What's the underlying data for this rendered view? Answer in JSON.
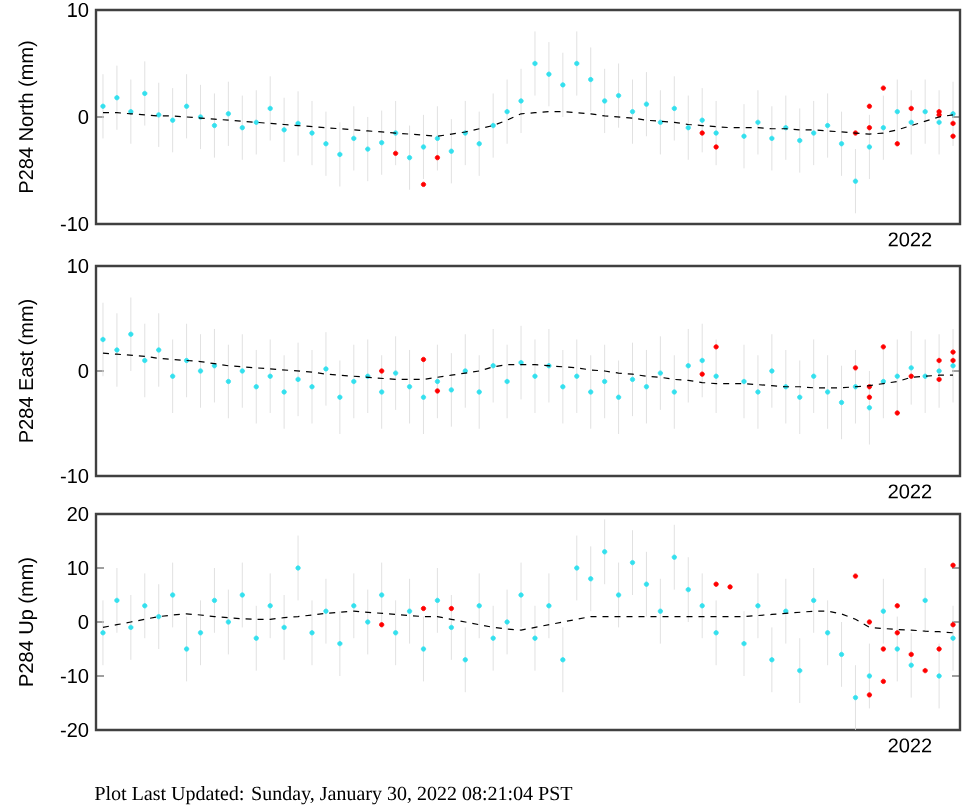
{
  "chart_data": [
    {
      "type": "scatter",
      "ylabel": "P284 North (mm)",
      "ylim": [
        -10,
        10
      ],
      "yticks": [
        -10,
        0,
        10
      ],
      "tick_labels": "y",
      "annotations": [
        "2022"
      ],
      "categories": [
        null,
        null,
        null,
        null,
        null,
        null,
        null,
        null,
        null,
        null,
        null,
        null,
        null,
        null,
        null,
        null,
        null,
        null,
        null,
        null,
        null,
        null,
        null,
        null,
        null,
        null,
        null,
        null,
        null,
        null,
        null,
        null,
        null,
        null,
        null,
        null,
        null,
        null,
        null,
        null,
        null,
        null,
        null,
        null,
        null,
        null,
        null,
        null,
        null,
        null,
        null,
        null,
        null,
        null,
        null,
        null,
        null,
        null,
        null,
        null,
        null,
        null
      ],
      "series": [
        {
          "color": "#33e0ee",
          "marker": "circle",
          "values": [
            1.0,
            1.8,
            0.5,
            2.2,
            0.2,
            -0.3,
            1.0,
            0.0,
            -0.8,
            0.3,
            -1.0,
            -0.5,
            0.8,
            -1.2,
            -0.6,
            -1.5,
            -2.5,
            -3.5,
            -2.0,
            -3.0,
            -2.4,
            -1.5,
            -3.8,
            -2.8,
            -2.0,
            -3.2,
            -1.5,
            -2.5,
            -0.8,
            0.5,
            1.5,
            5.0,
            4.0,
            3.0,
            5.0,
            3.5,
            1.5,
            2.0,
            0.5,
            1.2,
            -0.5,
            0.8,
            -1.0,
            -0.3,
            -1.5,
            null,
            -1.8,
            -0.5,
            -2.0,
            -1.0,
            -2.2,
            -1.5,
            -0.8,
            -2.5,
            -6.0,
            -2.8,
            -1.0,
            0.5,
            -0.5,
            0.5,
            -0.5,
            0.3
          ],
          "errors": [
            3,
            3,
            3,
            3,
            3,
            3,
            3,
            3,
            3,
            3,
            3,
            3,
            3,
            3,
            3,
            3,
            3,
            3,
            3,
            3,
            3,
            3,
            3,
            3,
            3,
            3,
            3,
            3,
            3,
            3,
            3,
            3,
            3,
            3,
            3,
            3,
            3,
            3,
            3,
            3,
            3,
            3,
            3,
            3,
            3,
            null,
            3,
            3,
            3,
            3,
            3,
            3,
            3,
            3,
            3,
            3,
            3,
            3,
            3,
            3,
            3,
            3
          ]
        },
        {
          "color": "#ff0000",
          "marker": "circle",
          "values": [
            null,
            null,
            null,
            null,
            null,
            null,
            null,
            null,
            null,
            null,
            null,
            null,
            null,
            null,
            null,
            null,
            null,
            null,
            null,
            null,
            null,
            -3.4,
            null,
            -6.3,
            -3.8,
            null,
            null,
            null,
            null,
            null,
            null,
            null,
            null,
            null,
            null,
            null,
            null,
            null,
            null,
            null,
            null,
            null,
            null,
            -1.5,
            -2.8,
            null,
            null,
            null,
            null,
            null,
            null,
            null,
            null,
            null,
            -1.5,
            1.0,
            2.7,
            -2.5,
            0.8,
            null,
            0.2,
            -1.8
          ]
        },
        {
          "color": "#ff0000",
          "marker": "circle",
          "values": [
            null,
            null,
            null,
            null,
            null,
            null,
            null,
            null,
            null,
            null,
            null,
            null,
            null,
            null,
            null,
            null,
            null,
            null,
            null,
            null,
            null,
            null,
            null,
            null,
            null,
            null,
            null,
            null,
            null,
            null,
            null,
            null,
            null,
            null,
            null,
            null,
            null,
            null,
            null,
            null,
            null,
            null,
            null,
            null,
            null,
            null,
            null,
            null,
            null,
            null,
            null,
            null,
            null,
            null,
            null,
            -1.0,
            null,
            null,
            null,
            null,
            0.5,
            -0.6
          ]
        },
        {
          "type": "line",
          "color": "#000000",
          "line_style": "dashed",
          "marker": "none",
          "values": [
            0.4,
            0.4,
            0.3,
            0.2,
            0.1,
            0.1,
            0.0,
            -0.1,
            -0.2,
            -0.3,
            -0.4,
            -0.5,
            -0.6,
            -0.7,
            -0.8,
            -0.9,
            -1.0,
            -1.1,
            -1.2,
            -1.3,
            -1.4,
            -1.5,
            -1.6,
            -1.7,
            -1.8,
            -1.6,
            -1.4,
            -1.1,
            -0.8,
            -0.3,
            0.3,
            0.4,
            0.5,
            0.5,
            0.4,
            0.3,
            0.1,
            0.0,
            -0.1,
            -0.3,
            -0.4,
            -0.5,
            -0.7,
            -0.8,
            -0.9,
            -1.0,
            -1.0,
            -1.0,
            -1.1,
            -1.1,
            -1.2,
            -1.2,
            -1.3,
            -1.4,
            -1.5,
            -1.6,
            -1.5,
            -1.2,
            -0.8,
            -0.4,
            0.0,
            0.2
          ]
        }
      ]
    },
    {
      "type": "scatter",
      "ylabel": "P284 East (mm)",
      "ylim": [
        -10,
        10
      ],
      "yticks": [
        -10,
        0,
        10
      ],
      "tick_labels": "y",
      "annotations": [
        "2022"
      ],
      "categories": [
        null,
        null,
        null,
        null,
        null,
        null,
        null,
        null,
        null,
        null,
        null,
        null,
        null,
        null,
        null,
        null,
        null,
        null,
        null,
        null,
        null,
        null,
        null,
        null,
        null,
        null,
        null,
        null,
        null,
        null,
        null,
        null,
        null,
        null,
        null,
        null,
        null,
        null,
        null,
        null,
        null,
        null,
        null,
        null,
        null,
        null,
        null,
        null,
        null,
        null,
        null,
        null,
        null,
        null,
        null,
        null,
        null,
        null,
        null,
        null,
        null,
        null
      ],
      "series": [
        {
          "color": "#33e0ee",
          "marker": "circle",
          "values": [
            3.0,
            2.0,
            3.5,
            1.0,
            2.0,
            -0.5,
            1.0,
            0.0,
            0.5,
            -1.0,
            0.0,
            -1.5,
            -0.5,
            -2.0,
            -0.8,
            -1.5,
            0.2,
            -2.5,
            -1.0,
            -0.5,
            -2.0,
            -0.2,
            -1.5,
            -2.5,
            -1.0,
            -1.8,
            0.0,
            -2.0,
            0.5,
            -1.0,
            0.8,
            -0.5,
            0.5,
            -1.5,
            -0.5,
            -2.0,
            -1.0,
            -2.5,
            -0.8,
            -1.5,
            -0.2,
            -2.0,
            0.5,
            1.0,
            -0.5,
            null,
            -1.0,
            -2.0,
            0.0,
            -1.5,
            -2.5,
            -0.5,
            -2.0,
            -3.0,
            -1.5,
            -3.5,
            -1.0,
            -0.5,
            0.3,
            -0.5,
            0.0,
            0.5
          ],
          "errors": [
            3.5,
            3.5,
            3.5,
            3.5,
            3.5,
            3.5,
            3.5,
            3.5,
            3.5,
            3.5,
            3.5,
            3.5,
            3.5,
            3.5,
            3.5,
            3.5,
            3.5,
            3.5,
            3.5,
            3.5,
            3.5,
            3.5,
            3.5,
            3.5,
            3.5,
            3.5,
            3.5,
            3.5,
            3.5,
            3.5,
            3.5,
            3.5,
            3.5,
            3.5,
            3.5,
            3.5,
            3.5,
            3.5,
            3.5,
            3.5,
            3.5,
            3.5,
            3.5,
            3.5,
            3.5,
            null,
            3.5,
            3.5,
            3.5,
            3.5,
            3.5,
            3.5,
            3.5,
            3.5,
            3.5,
            3.5,
            3.5,
            3.5,
            3.5,
            3.5,
            3.5,
            3.5
          ]
        },
        {
          "color": "#ff0000",
          "marker": "circle",
          "values": [
            null,
            null,
            null,
            null,
            null,
            null,
            null,
            null,
            null,
            null,
            null,
            null,
            null,
            null,
            null,
            null,
            null,
            null,
            null,
            null,
            0.0,
            null,
            null,
            1.1,
            -1.9,
            null,
            null,
            null,
            null,
            null,
            null,
            null,
            null,
            null,
            null,
            null,
            null,
            null,
            null,
            null,
            null,
            null,
            null,
            null,
            2.3,
            null,
            null,
            null,
            null,
            null,
            null,
            null,
            null,
            null,
            0.3,
            -2.5,
            2.3,
            -4.0,
            -0.5,
            null,
            -0.8,
            1.8
          ]
        },
        {
          "color": "#ff0000",
          "marker": "circle",
          "values": [
            null,
            null,
            null,
            null,
            null,
            null,
            null,
            null,
            null,
            null,
            null,
            null,
            null,
            null,
            null,
            null,
            null,
            null,
            null,
            null,
            null,
            null,
            null,
            null,
            null,
            null,
            null,
            null,
            null,
            null,
            null,
            null,
            null,
            null,
            null,
            null,
            null,
            null,
            null,
            null,
            null,
            null,
            null,
            -0.3,
            null,
            null,
            null,
            null,
            null,
            null,
            null,
            null,
            null,
            null,
            null,
            -1.5,
            null,
            null,
            null,
            null,
            1.0,
            1.0
          ]
        },
        {
          "type": "line",
          "color": "#000000",
          "line_style": "dashed",
          "marker": "none",
          "values": [
            1.7,
            1.6,
            1.5,
            1.4,
            1.2,
            1.1,
            1.0,
            0.9,
            0.7,
            0.5,
            0.4,
            0.3,
            0.2,
            0.1,
            0.0,
            -0.1,
            -0.3,
            -0.4,
            -0.5,
            -0.6,
            -0.7,
            -0.8,
            -0.8,
            -0.8,
            -0.6,
            -0.4,
            -0.2,
            0.0,
            0.4,
            0.6,
            0.6,
            0.6,
            0.5,
            0.4,
            0.3,
            0.1,
            0.0,
            -0.2,
            -0.3,
            -0.5,
            -0.6,
            -0.8,
            -0.9,
            -1.1,
            -1.2,
            -1.2,
            -1.2,
            -1.3,
            -1.4,
            -1.5,
            -1.5,
            -1.6,
            -1.6,
            -1.6,
            -1.5,
            -1.4,
            -1.2,
            -1.0,
            -0.6,
            -0.5,
            -0.4,
            -0.4
          ]
        }
      ]
    },
    {
      "type": "scatter",
      "ylabel": "P284 Up (mm)",
      "ylim": [
        -20,
        20
      ],
      "yticks": [
        -20,
        -10,
        0,
        10,
        20
      ],
      "tick_labels": "y",
      "annotations": [
        "2022",
        "Plot Last Updated:   Sunday, January 30, 2022 08:21:04 PST"
      ],
      "categories": [
        null,
        null,
        null,
        null,
        null,
        null,
        null,
        null,
        null,
        null,
        null,
        null,
        null,
        null,
        null,
        null,
        null,
        null,
        null,
        null,
        null,
        null,
        null,
        null,
        null,
        null,
        null,
        null,
        null,
        null,
        null,
        null,
        null,
        null,
        null,
        null,
        null,
        null,
        null,
        null,
        null,
        null,
        null,
        null,
        null,
        null,
        null,
        null,
        null,
        null,
        null,
        null,
        null,
        null,
        null,
        null,
        null,
        null,
        null,
        null,
        null,
        null
      ],
      "series": [
        {
          "color": "#33e0ee",
          "marker": "circle",
          "values": [
            -2,
            4,
            -1,
            3,
            1,
            5,
            -5,
            -2,
            4,
            0,
            5,
            -3,
            3,
            -1,
            10,
            -2,
            2,
            -4,
            3,
            0,
            5,
            -2,
            2,
            -5,
            4,
            -1,
            -7,
            3,
            -3,
            0,
            5,
            -3,
            3,
            -7,
            10,
            8,
            13,
            5,
            11,
            7,
            2,
            12,
            6,
            3,
            -2,
            null,
            -4,
            3,
            -7,
            2,
            -9,
            4,
            -2,
            -6,
            -14,
            -10,
            2,
            -5,
            -8,
            4,
            -10,
            -3
          ],
          "errors": [
            6,
            6,
            6,
            6,
            6,
            6,
            6,
            6,
            6,
            6,
            6,
            6,
            6,
            6,
            6,
            6,
            6,
            6,
            6,
            6,
            6,
            6,
            6,
            6,
            6,
            6,
            6,
            6,
            6,
            6,
            6,
            6,
            6,
            6,
            6,
            6,
            6,
            6,
            6,
            6,
            6,
            6,
            6,
            6,
            6,
            null,
            6,
            6,
            6,
            6,
            6,
            6,
            6,
            6,
            6,
            6,
            6,
            6,
            6,
            6,
            6,
            6
          ]
        },
        {
          "color": "#ff0000",
          "marker": "circle",
          "values": [
            null,
            null,
            null,
            null,
            null,
            null,
            null,
            null,
            null,
            null,
            null,
            null,
            null,
            null,
            null,
            null,
            null,
            null,
            null,
            null,
            -0.5,
            null,
            null,
            2.5,
            null,
            2.5,
            null,
            null,
            null,
            null,
            null,
            null,
            null,
            null,
            null,
            null,
            null,
            null,
            null,
            null,
            null,
            null,
            null,
            null,
            7.0,
            null,
            null,
            null,
            null,
            null,
            null,
            null,
            null,
            null,
            8.5,
            -13.5,
            -5,
            3,
            -6,
            null,
            -5,
            10.5
          ]
        },
        {
          "color": "#ff0000",
          "marker": "circle",
          "values": [
            null,
            null,
            null,
            null,
            null,
            null,
            null,
            null,
            null,
            null,
            null,
            null,
            null,
            null,
            null,
            null,
            null,
            null,
            null,
            null,
            null,
            null,
            null,
            null,
            null,
            null,
            null,
            null,
            null,
            null,
            null,
            null,
            null,
            null,
            null,
            null,
            null,
            null,
            null,
            null,
            null,
            null,
            null,
            null,
            null,
            6.5,
            null,
            null,
            null,
            null,
            null,
            null,
            null,
            null,
            null,
            0,
            -11,
            -2,
            null,
            -9,
            null,
            -0.5
          ]
        },
        {
          "type": "line",
          "color": "#000000",
          "line_style": "dashed",
          "marker": "none",
          "values": [
            -1.0,
            -0.5,
            0.0,
            0.5,
            1.0,
            1.3,
            1.5,
            1.3,
            1.0,
            0.8,
            0.6,
            0.5,
            0.5,
            0.8,
            1.0,
            1.3,
            1.6,
            1.8,
            2.0,
            1.8,
            1.6,
            1.4,
            1.2,
            1.0,
            1.0,
            0.5,
            0.0,
            -0.5,
            -1.0,
            -1.3,
            -1.5,
            -1.0,
            -0.5,
            0.0,
            0.5,
            1.0,
            1.0,
            1.0,
            1.0,
            1.0,
            1.0,
            1.0,
            1.0,
            1.0,
            1.0,
            1.0,
            1.0,
            1.2,
            1.4,
            1.6,
            1.8,
            2.0,
            2.0,
            1.5,
            0.5,
            -1.0,
            -1.2,
            -1.4,
            -1.5,
            -1.7,
            -1.8,
            -2.0
          ]
        }
      ]
    }
  ]
}
